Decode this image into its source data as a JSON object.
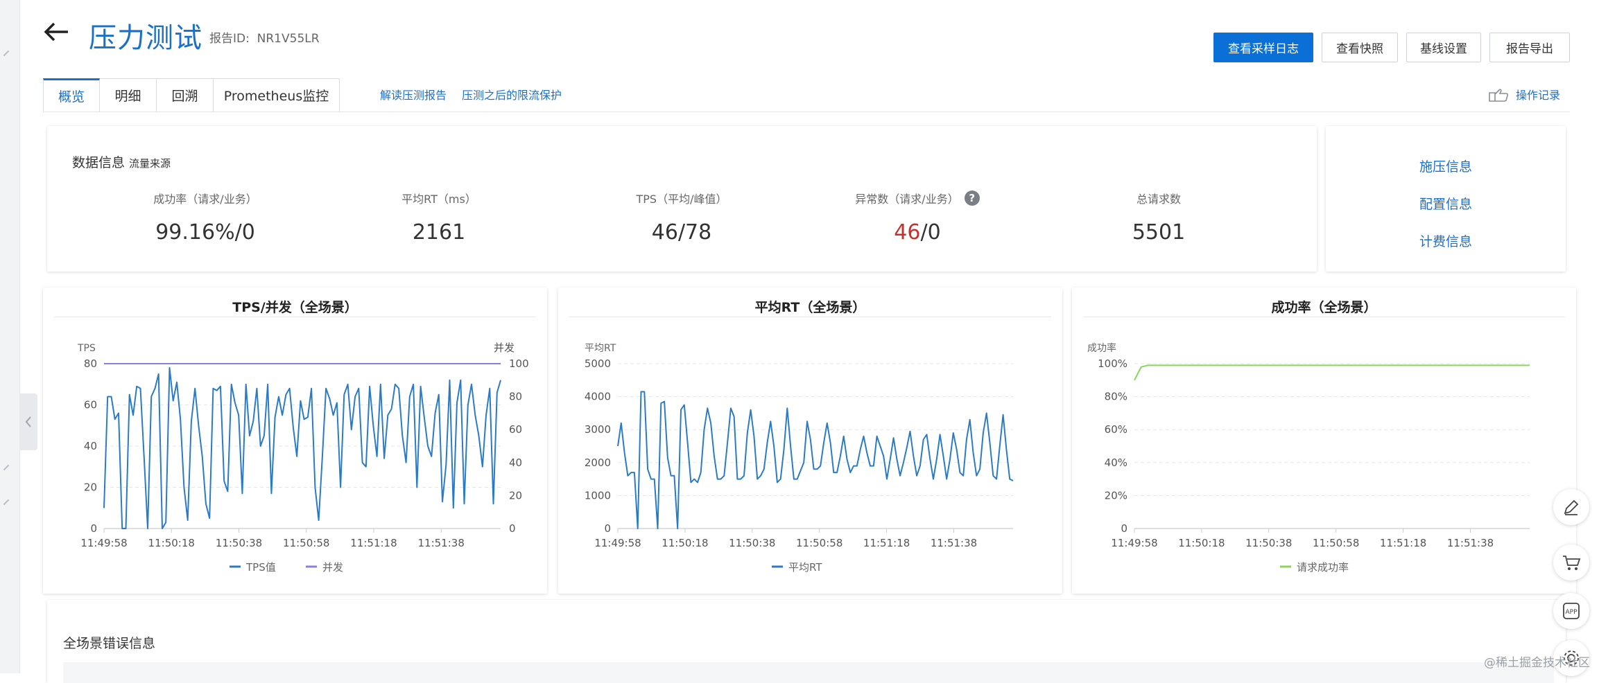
{
  "header": {
    "title": "压力测试",
    "report_id_label": "报告ID:",
    "report_id": "NR1V55LR"
  },
  "toolbar": {
    "view_log": "查看采样日志",
    "view_snapshot": "查看快照",
    "baseline": "基线设置",
    "export": "报告导出"
  },
  "tabs": [
    "概览",
    "明细",
    "回溯",
    "Prometheus监控"
  ],
  "tab_links": [
    "解读压测报告",
    "压测之后的限流保护"
  ],
  "op_record": "操作记录",
  "data_info": {
    "title": "数据信息",
    "subtitle": "流量来源",
    "stats": [
      {
        "label": "成功率（请求/业务）",
        "value": "99.16%/0"
      },
      {
        "label": "平均RT（ms）",
        "value": "2161"
      },
      {
        "label": "TPS（平均/峰值）",
        "value": "46/78"
      },
      {
        "label": "异常数（请求/业务）",
        "value_red": "46",
        "value_rest": "/0"
      },
      {
        "label": "总请求数",
        "value": "5501"
      }
    ]
  },
  "side_links": [
    "施压信息",
    "配置信息",
    "计费信息"
  ],
  "chart_data": [
    {
      "type": "line",
      "title": "TPS/并发（全场景）",
      "ylabel": "TPS",
      "y2label": "并发",
      "ylim": [
        0,
        80
      ],
      "y2lim": [
        0,
        100
      ],
      "yticks": [
        0,
        20,
        40,
        60,
        80
      ],
      "y2ticks": [
        0,
        20,
        40,
        60,
        80,
        100
      ],
      "xticks": [
        "11:49:58",
        "11:50:18",
        "11:50:38",
        "11:50:58",
        "11:51:18",
        "11:51:38"
      ],
      "series": [
        {
          "name": "TPS值",
          "color": "#2b7bc4",
          "axis": "left",
          "values": [
            10,
            64,
            64,
            53,
            56,
            0,
            0,
            65,
            55,
            69,
            68,
            35,
            0,
            64,
            68,
            75,
            0,
            3,
            78,
            62,
            71,
            53,
            20,
            4,
            52,
            68,
            50,
            35,
            12,
            5,
            68,
            67,
            69,
            23,
            18,
            70,
            61,
            55,
            17,
            70,
            45,
            52,
            68,
            40,
            45,
            70,
            17,
            54,
            64,
            55,
            65,
            68,
            49,
            35,
            62,
            53,
            54,
            68,
            20,
            4,
            35,
            68,
            63,
            55,
            61,
            20,
            65,
            70,
            48,
            64,
            68,
            32,
            30,
            69,
            50,
            35,
            70,
            34,
            55,
            58,
            70,
            68,
            45,
            32,
            64,
            70,
            20,
            69,
            54,
            40,
            35,
            56,
            65,
            13,
            31,
            72,
            10,
            61,
            72,
            12,
            60,
            70,
            55,
            45,
            30,
            55,
            68,
            12,
            66,
            72
          ]
        },
        {
          "name": "并发",
          "color": "#8a7fe0",
          "axis": "right",
          "values": [
            100,
            100
          ]
        }
      ]
    },
    {
      "type": "line",
      "title": "平均RT（全场景）",
      "ylabel": "平均RT",
      "ylim": [
        0,
        5000
      ],
      "yticks": [
        0,
        1000,
        2000,
        3000,
        4000,
        5000
      ],
      "xticks": [
        "11:49:58",
        "11:50:18",
        "11:50:38",
        "11:50:58",
        "11:51:18",
        "11:51:38"
      ],
      "series": [
        {
          "name": "平均RT",
          "color": "#2b7bc4",
          "values": [
            2500,
            3200,
            2300,
            1600,
            1700,
            1700,
            0,
            4150,
            4150,
            1800,
            1500,
            1500,
            0,
            3800,
            3850,
            2150,
            1600,
            1600,
            0,
            3600,
            3750,
            2600,
            1400,
            1500,
            1400,
            1700,
            3000,
            3650,
            3200,
            2200,
            1500,
            1500,
            1600,
            2600,
            3650,
            3400,
            1500,
            1500,
            1600,
            2900,
            3600,
            2800,
            1500,
            1600,
            1800,
            2600,
            3250,
            2500,
            1400,
            1500,
            2400,
            3650,
            2500,
            1500,
            1500,
            1750,
            2000,
            3250,
            2700,
            1800,
            1800,
            1900,
            2600,
            3200,
            2600,
            1700,
            1700,
            2200,
            2800,
            2100,
            1700,
            1900,
            1900,
            2400,
            2800,
            2300,
            1900,
            1900,
            2800,
            2500,
            2200,
            1500,
            2100,
            2750,
            2100,
            1600,
            2000,
            2450,
            2950,
            2200,
            1600,
            1900,
            2700,
            2850,
            2100,
            1500,
            2100,
            2850,
            2200,
            1500,
            2100,
            2900,
            2400,
            1700,
            1600,
            2700,
            3300,
            2300,
            1600,
            1800,
            2900,
            3500,
            2600,
            1600,
            1500,
            2500,
            3450,
            2400,
            1500,
            1450
          ]
        }
      ]
    },
    {
      "type": "line",
      "title": "成功率（全场景）",
      "ylabel": "成功率",
      "ylim": [
        0,
        100
      ],
      "yticks": [
        "0",
        "20%",
        "40%",
        "60%",
        "80%",
        "100%"
      ],
      "xticks": [
        "11:49:58",
        "11:50:18",
        "11:50:38",
        "11:50:58",
        "11:51:18",
        "11:51:38"
      ],
      "series": [
        {
          "name": "请求成功率",
          "color": "#8bd45a",
          "values": [
            90,
            98,
            99,
            99,
            99,
            99,
            99,
            99,
            99,
            99,
            99,
            99,
            99,
            99,
            99,
            99,
            99,
            99,
            99,
            99,
            99,
            99,
            99,
            99,
            99,
            99,
            99,
            99,
            99,
            99,
            99,
            99,
            99,
            99,
            99,
            99,
            99,
            99,
            99,
            99,
            99,
            99,
            99,
            99,
            99,
            99,
            99,
            99,
            99,
            99,
            99,
            99,
            99,
            99,
            99,
            99,
            99,
            99,
            99,
            99
          ]
        }
      ]
    }
  ],
  "error_section": {
    "title": "全场景错误信息"
  },
  "watermark": "@稀土掘金技术社区"
}
